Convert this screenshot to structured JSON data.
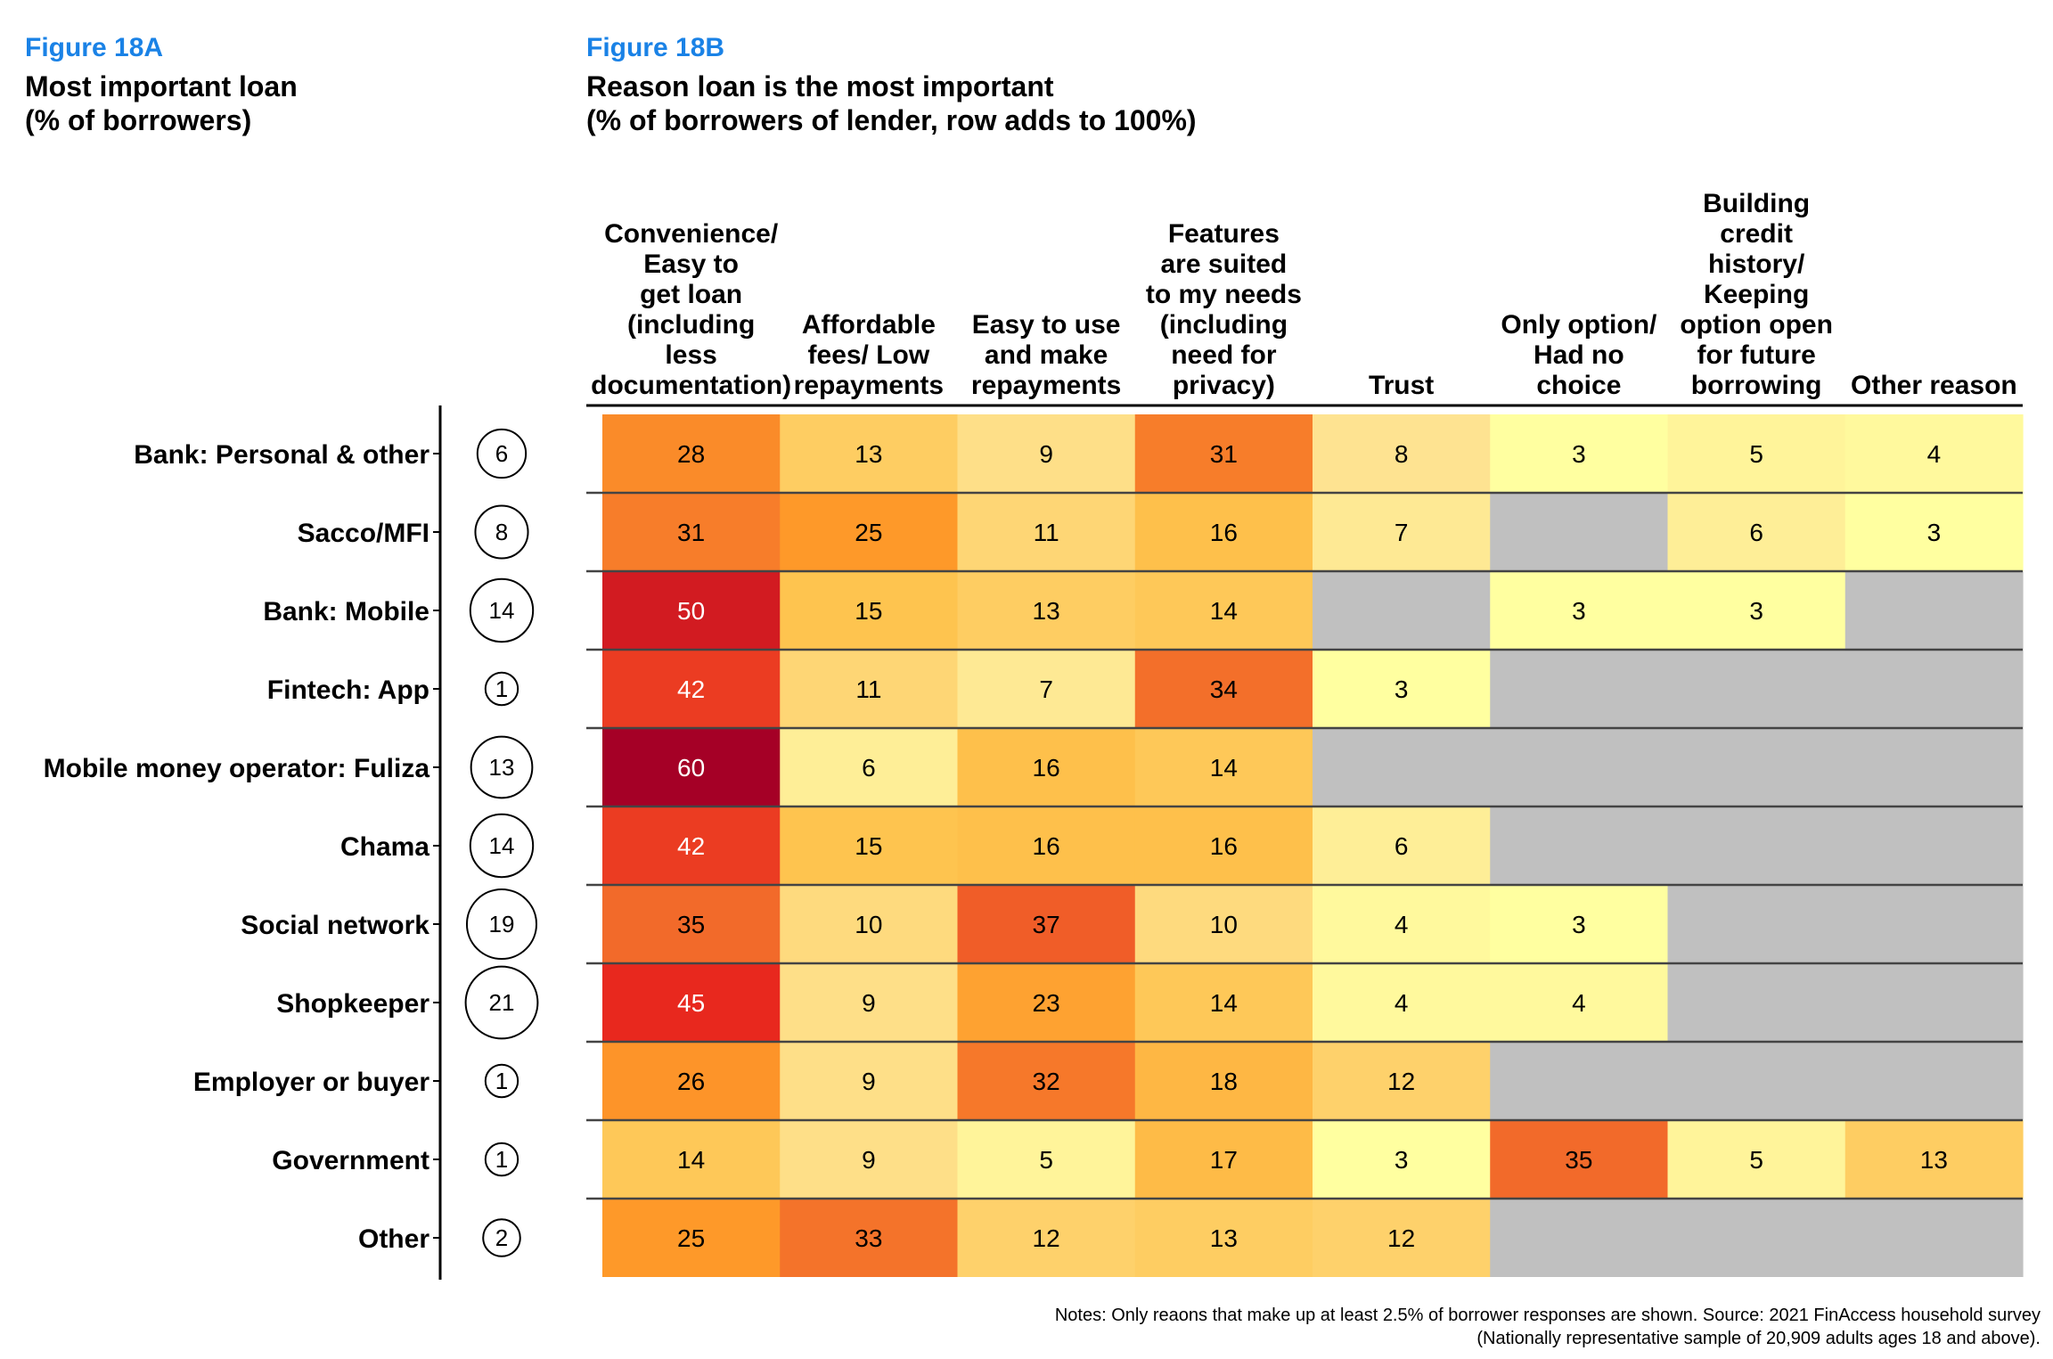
{
  "figure_a": {
    "label": "Figure 18A",
    "title_lines": [
      "Most important loan",
      "(% of borrowers)"
    ]
  },
  "figure_b": {
    "label": "Figure 18B",
    "title_lines": [
      "Reason loan is the most important",
      "(% of borrowers of lender, row adds to 100%)"
    ]
  },
  "notes": [
    "Notes: Only reaons that make up at least 2.5% of borrower responses are shown. Source: 2021 FinAccess household survey",
    "(Nationally representative sample of 20,909 adults ages 18 and above)."
  ],
  "colors": {
    "accent": "#1a82e6",
    "missing": "#c0c0c0",
    "scale": [
      "#ffffa0",
      "#fee391",
      "#fec44f",
      "#fe9929",
      "#f26a2a",
      "#e8281e",
      "#a50026"
    ]
  },
  "chart_data": {
    "type": "heatmap",
    "rows": [
      "Bank: Personal & other",
      "Sacco/MFI",
      "Bank: Mobile",
      "Fintech: App",
      "Mobile money operator: Fuliza",
      "Chama",
      "Social network",
      "Shopkeeper",
      "Employer or buyer",
      "Government",
      "Other"
    ],
    "most_important_loan_pct": [
      6,
      8,
      14,
      1,
      13,
      14,
      19,
      21,
      1,
      1,
      2
    ],
    "columns": [
      [
        "Convenience/",
        "Easy to",
        "get loan",
        "(including",
        "less",
        "documentation)"
      ],
      [
        "Affordable",
        "fees/ Low",
        "repayments"
      ],
      [
        "Easy to use",
        "and make",
        "repayments"
      ],
      [
        "Features",
        "are suited",
        "to my needs",
        "(including",
        "need for",
        "privacy)"
      ],
      [
        "Trust"
      ],
      [
        "Only option/",
        "Had no",
        "choice"
      ],
      [
        "Building",
        "credit",
        "history/",
        "Keeping",
        "option open",
        "for future",
        "borrowing"
      ],
      [
        "Other reason"
      ]
    ],
    "values": [
      [
        28,
        13,
        9,
        31,
        8,
        3,
        5,
        4
      ],
      [
        31,
        25,
        11,
        16,
        7,
        null,
        6,
        3
      ],
      [
        50,
        15,
        13,
        14,
        null,
        3,
        3,
        null
      ],
      [
        42,
        11,
        7,
        34,
        3,
        null,
        null,
        null
      ],
      [
        60,
        6,
        16,
        14,
        null,
        null,
        null,
        null
      ],
      [
        42,
        15,
        16,
        16,
        6,
        null,
        null,
        null
      ],
      [
        35,
        10,
        37,
        10,
        4,
        3,
        null,
        null
      ],
      [
        45,
        9,
        23,
        14,
        4,
        4,
        null,
        null
      ],
      [
        26,
        9,
        32,
        18,
        12,
        null,
        null,
        null
      ],
      [
        14,
        9,
        5,
        17,
        3,
        35,
        5,
        13
      ],
      [
        25,
        33,
        12,
        13,
        12,
        null,
        null,
        null
      ]
    ]
  }
}
